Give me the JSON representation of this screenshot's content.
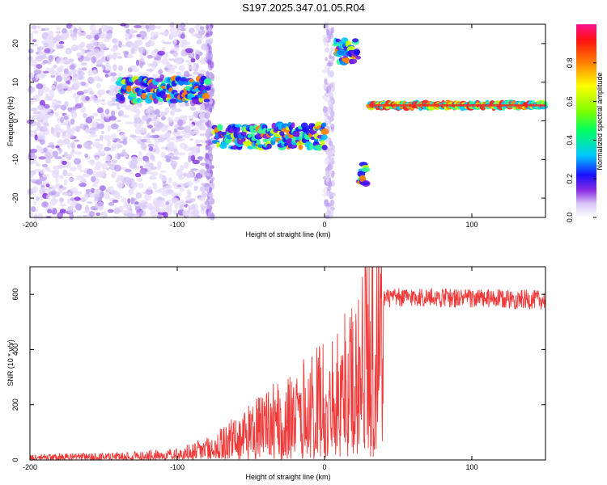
{
  "title": "S197.2025.347.01.05.R04",
  "chart_data": [
    {
      "type": "heatmap",
      "xlabel": "Height of straight line (km)",
      "ylabel": "Frequency (Hz)",
      "xlim": [
        -200,
        150
      ],
      "ylim": [
        -25,
        25
      ],
      "xticks": [
        -200,
        -100,
        0,
        100
      ],
      "yticks": [
        -20,
        -10,
        0,
        10,
        20
      ],
      "colorbar": {
        "label": "Normalized spectral amplitude",
        "range": [
          0,
          1
        ],
        "ticks": [
          0.0,
          0.2,
          0.4,
          0.6,
          0.8
        ]
      },
      "features": [
        {
          "description": "scattered low-amplitude noise",
          "x_range": [
            -200,
            -80
          ],
          "freq_range": [
            -25,
            25
          ]
        },
        {
          "description": "signal ridge",
          "x_range": [
            -140,
            -80
          ],
          "freq_center": 8
        },
        {
          "description": "signal ridge",
          "x_range": [
            -75,
            0
          ],
          "freq_center": -4
        },
        {
          "description": "signal band",
          "x_range": [
            7,
            22
          ],
          "freq_center": 18
        },
        {
          "description": "signal spot",
          "x_range": [
            23,
            28
          ],
          "freq_center": -14
        },
        {
          "description": "strong carrier",
          "x_range": [
            30,
            150
          ],
          "freq_center": 4
        }
      ]
    },
    {
      "type": "line",
      "xlabel": "Height of straight line (km)",
      "ylabel": "SNR (10 * v/v)",
      "xlim": [
        -200,
        150
      ],
      "ylim": [
        0,
        700
      ],
      "xticks": [
        -200,
        -100,
        0,
        100
      ],
      "yticks": [
        0,
        200,
        400,
        600
      ],
      "series": [
        {
          "name": "SNR",
          "color": "#f03a3a",
          "envelope": [
            {
              "x": -200,
              "mean": 12
            },
            {
              "x": -140,
              "mean": 15
            },
            {
              "x": -100,
              "mean": 25
            },
            {
              "x": -80,
              "mean": 45
            },
            {
              "x": -60,
              "mean": 90
            },
            {
              "x": -40,
              "mean": 140
            },
            {
              "x": -20,
              "mean": 190
            },
            {
              "x": 0,
              "mean": 240
            },
            {
              "x": 20,
              "mean": 320
            },
            {
              "x": 30,
              "mean": 540
            },
            {
              "x": 40,
              "mean": 585
            },
            {
              "x": 60,
              "mean": 590
            },
            {
              "x": 100,
              "mean": 585
            },
            {
              "x": 150,
              "mean": 580
            }
          ]
        }
      ]
    }
  ]
}
